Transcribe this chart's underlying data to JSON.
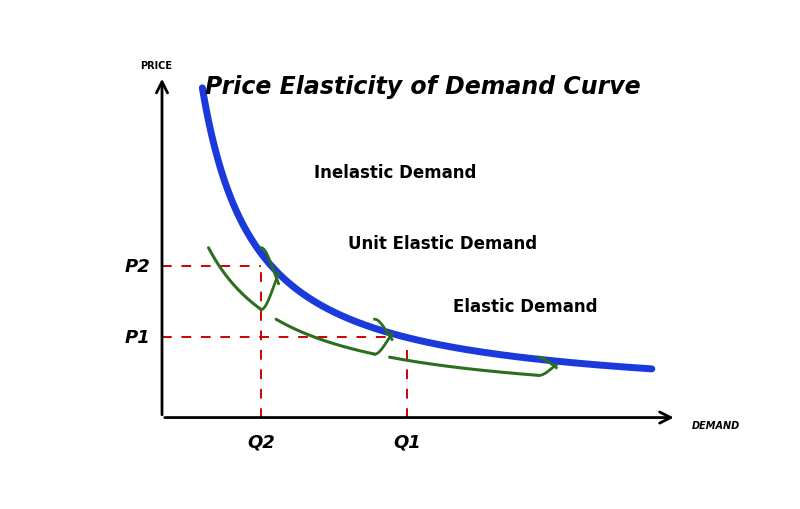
{
  "title": "Price Elasticity of Demand Curve",
  "title_fontstyle": "italic",
  "title_fontsize": 17,
  "xlabel": "DEMAND",
  "ylabel": "PRICE",
  "background_color": "#ffffff",
  "blue_color": "#1a3adb",
  "green_color": "#2d6e1e",
  "red_color": "#cc0000",
  "p1_label": "P1",
  "p2_label": "P2",
  "q1_label": "Q1",
  "q2_label": "Q2",
  "inelastic_label": "Inelastic Demand",
  "unit_elastic_label": "Unit Elastic Demand",
  "elastic_label": "Elastic Demand",
  "p1": 0.295,
  "p2": 0.475,
  "q1": 0.495,
  "q2": 0.26
}
